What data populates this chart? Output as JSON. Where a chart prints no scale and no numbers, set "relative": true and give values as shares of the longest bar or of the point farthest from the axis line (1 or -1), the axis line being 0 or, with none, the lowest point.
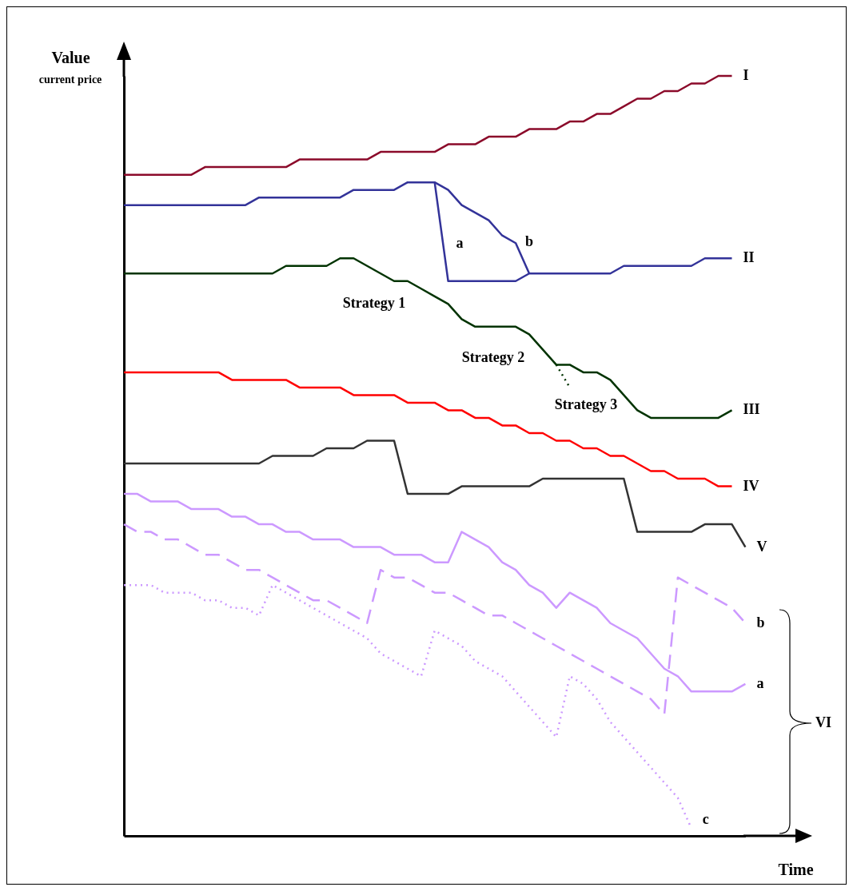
{
  "chart_data": {
    "type": "line",
    "relative": true,
    "xlabel": "Time",
    "ylabel": "Value",
    "categories": [
      null,
      null,
      null,
      null,
      null,
      null,
      null,
      null,
      null,
      null,
      null,
      null,
      null,
      null,
      null,
      null,
      null,
      null,
      null,
      null,
      null,
      null,
      null,
      null,
      null,
      null,
      null,
      null,
      null,
      null,
      null,
      null,
      null,
      null,
      null,
      null,
      null,
      null,
      null,
      null,
      null,
      null,
      null,
      null,
      null,
      null,
      null
    ],
    "series": [
      {
        "name": "I",
        "color": "#8b0a2a",
        "line_style": "solid",
        "values": [
          0.87,
          0.87,
          0.87,
          0.87,
          0.87,
          0.87,
          0.88,
          0.88,
          0.88,
          0.88,
          0.88,
          0.88,
          0.88,
          0.89,
          0.89,
          0.89,
          0.89,
          0.89,
          0.89,
          0.9,
          0.9,
          0.9,
          0.9,
          0.9,
          0.91,
          0.91,
          0.91,
          0.92,
          0.92,
          0.92,
          0.93,
          0.93,
          0.93,
          0.94,
          0.94,
          0.95,
          0.95,
          0.96,
          0.97,
          0.97,
          0.98,
          0.98,
          0.99,
          0.99,
          1.0,
          1.0,
          null
        ]
      },
      {
        "name": "II",
        "color": "#333399",
        "line_style": "solid",
        "values": [
          0.83,
          0.83,
          0.83,
          0.83,
          0.83,
          0.83,
          0.83,
          0.83,
          0.83,
          0.83,
          0.84,
          0.84,
          0.84,
          0.84,
          0.84,
          0.84,
          0.84,
          0.85,
          0.85,
          0.85,
          0.85,
          0.86,
          0.86,
          0.86,
          0.73,
          0.73,
          0.73,
          0.73,
          0.73,
          0.73,
          0.74,
          0.74,
          0.74,
          0.74,
          0.74,
          0.74,
          0.74,
          0.75,
          0.75,
          0.75,
          0.75,
          0.75,
          0.75,
          0.76,
          0.76,
          0.76,
          null
        ]
      },
      {
        "color": "#333399",
        "line_style": "solid",
        "values": [
          null,
          null,
          null,
          null,
          null,
          null,
          null,
          null,
          null,
          null,
          null,
          null,
          null,
          null,
          null,
          null,
          null,
          null,
          null,
          null,
          null,
          null,
          null,
          0.86,
          0.85,
          0.83,
          0.82,
          0.81,
          0.79,
          0.78,
          0.74,
          null,
          null,
          null,
          null,
          null,
          null,
          null,
          null,
          null,
          null,
          null,
          null,
          null,
          null,
          null,
          null
        ]
      },
      {
        "name": "III",
        "color": "#003300",
        "line_style": "solid",
        "values": [
          0.74,
          0.74,
          0.74,
          0.74,
          0.74,
          0.74,
          0.74,
          0.74,
          0.74,
          0.74,
          0.74,
          0.74,
          0.75,
          0.75,
          0.75,
          0.75,
          0.76,
          0.76,
          0.75,
          0.74,
          0.73,
          0.73,
          0.72,
          0.71,
          0.7,
          0.68,
          0.67,
          0.67,
          0.67,
          0.67,
          0.66,
          0.64,
          0.62,
          0.62,
          0.61,
          0.61,
          0.6,
          0.58,
          0.56,
          0.55,
          0.55,
          0.55,
          0.55,
          0.55,
          0.55,
          0.56,
          null
        ]
      },
      {
        "color": "#003300",
        "line_style": "dotted",
        "values": [
          null,
          null,
          null,
          null,
          null,
          null,
          null,
          null,
          null,
          null,
          null,
          null,
          null,
          null,
          null,
          null,
          null,
          null,
          null,
          null,
          null,
          null,
          null,
          null,
          null,
          null,
          null,
          null,
          null,
          null,
          null,
          null,
          0.62,
          0.59,
          null,
          null,
          null,
          null,
          null,
          null,
          null,
          null,
          null,
          null,
          null,
          null,
          null
        ]
      },
      {
        "name": "IV",
        "color": "#ff0000",
        "line_style": "solid",
        "values": [
          0.61,
          0.61,
          0.61,
          0.61,
          0.61,
          0.61,
          0.61,
          0.61,
          0.6,
          0.6,
          0.6,
          0.6,
          0.6,
          0.59,
          0.59,
          0.59,
          0.59,
          0.58,
          0.58,
          0.58,
          0.58,
          0.57,
          0.57,
          0.57,
          0.56,
          0.56,
          0.55,
          0.55,
          0.54,
          0.54,
          0.53,
          0.53,
          0.52,
          0.52,
          0.51,
          0.51,
          0.5,
          0.5,
          0.49,
          0.48,
          0.48,
          0.47,
          0.47,
          0.47,
          0.46,
          0.46,
          null
        ]
      },
      {
        "name": "V",
        "color": "#333333",
        "line_style": "solid",
        "values": [
          0.49,
          0.49,
          0.49,
          0.49,
          0.49,
          0.49,
          0.49,
          0.49,
          0.49,
          0.49,
          0.49,
          0.5,
          0.5,
          0.5,
          0.5,
          0.51,
          0.51,
          0.51,
          0.52,
          0.52,
          0.52,
          0.45,
          0.45,
          0.45,
          0.45,
          0.46,
          0.46,
          0.46,
          0.46,
          0.46,
          0.46,
          0.47,
          0.47,
          0.47,
          0.47,
          0.47,
          0.47,
          0.47,
          0.4,
          0.4,
          0.4,
          0.4,
          0.4,
          0.41,
          0.41,
          0.41,
          0.38
        ]
      },
      {
        "name": "b",
        "color": "#cc99ff",
        "line_style": "dashed",
        "values": [
          0.41,
          0.4,
          0.4,
          0.39,
          0.39,
          0.38,
          0.37,
          0.37,
          0.36,
          0.35,
          0.35,
          0.34,
          0.33,
          0.32,
          0.31,
          0.31,
          0.3,
          0.29,
          0.28,
          0.35,
          0.34,
          0.34,
          0.33,
          0.32,
          0.32,
          0.31,
          0.3,
          0.29,
          0.29,
          0.28,
          0.27,
          0.26,
          0.25,
          0.24,
          0.23,
          0.22,
          0.21,
          0.2,
          0.19,
          0.18,
          0.16,
          0.34,
          0.33,
          0.32,
          0.31,
          0.3,
          0.28
        ]
      },
      {
        "name": "a",
        "color": "#cc99ff",
        "line_style": "solid",
        "values": [
          0.45,
          0.45,
          0.44,
          0.44,
          0.44,
          0.43,
          0.43,
          0.43,
          0.42,
          0.42,
          0.41,
          0.41,
          0.4,
          0.4,
          0.39,
          0.39,
          0.39,
          0.38,
          0.38,
          0.38,
          0.37,
          0.37,
          0.37,
          0.36,
          0.36,
          0.4,
          0.39,
          0.38,
          0.36,
          0.35,
          0.33,
          0.32,
          0.3,
          0.32,
          0.31,
          0.3,
          0.28,
          0.27,
          0.26,
          0.24,
          0.22,
          0.21,
          0.19,
          0.19,
          0.19,
          0.19,
          0.2
        ]
      },
      {
        "name": "c",
        "color": "#cc99ff",
        "line_style": "dotted",
        "values": [
          0.33,
          0.33,
          0.33,
          0.32,
          0.32,
          0.32,
          0.31,
          0.31,
          0.3,
          0.3,
          0.29,
          0.33,
          0.32,
          0.31,
          0.3,
          0.29,
          0.28,
          0.27,
          0.26,
          0.24,
          0.23,
          0.22,
          0.21,
          0.27,
          0.26,
          0.25,
          0.23,
          0.22,
          0.21,
          0.19,
          0.17,
          0.15,
          0.13,
          0.21,
          0.2,
          0.18,
          0.15,
          0.13,
          0.11,
          0.09,
          0.07,
          0.05,
          0.01,
          null,
          null,
          null,
          null
        ]
      }
    ],
    "annotations": [
      "current price",
      "a",
      "b",
      "Strategy 1",
      "Strategy 2",
      "Strategy 3",
      "VI"
    ]
  }
}
